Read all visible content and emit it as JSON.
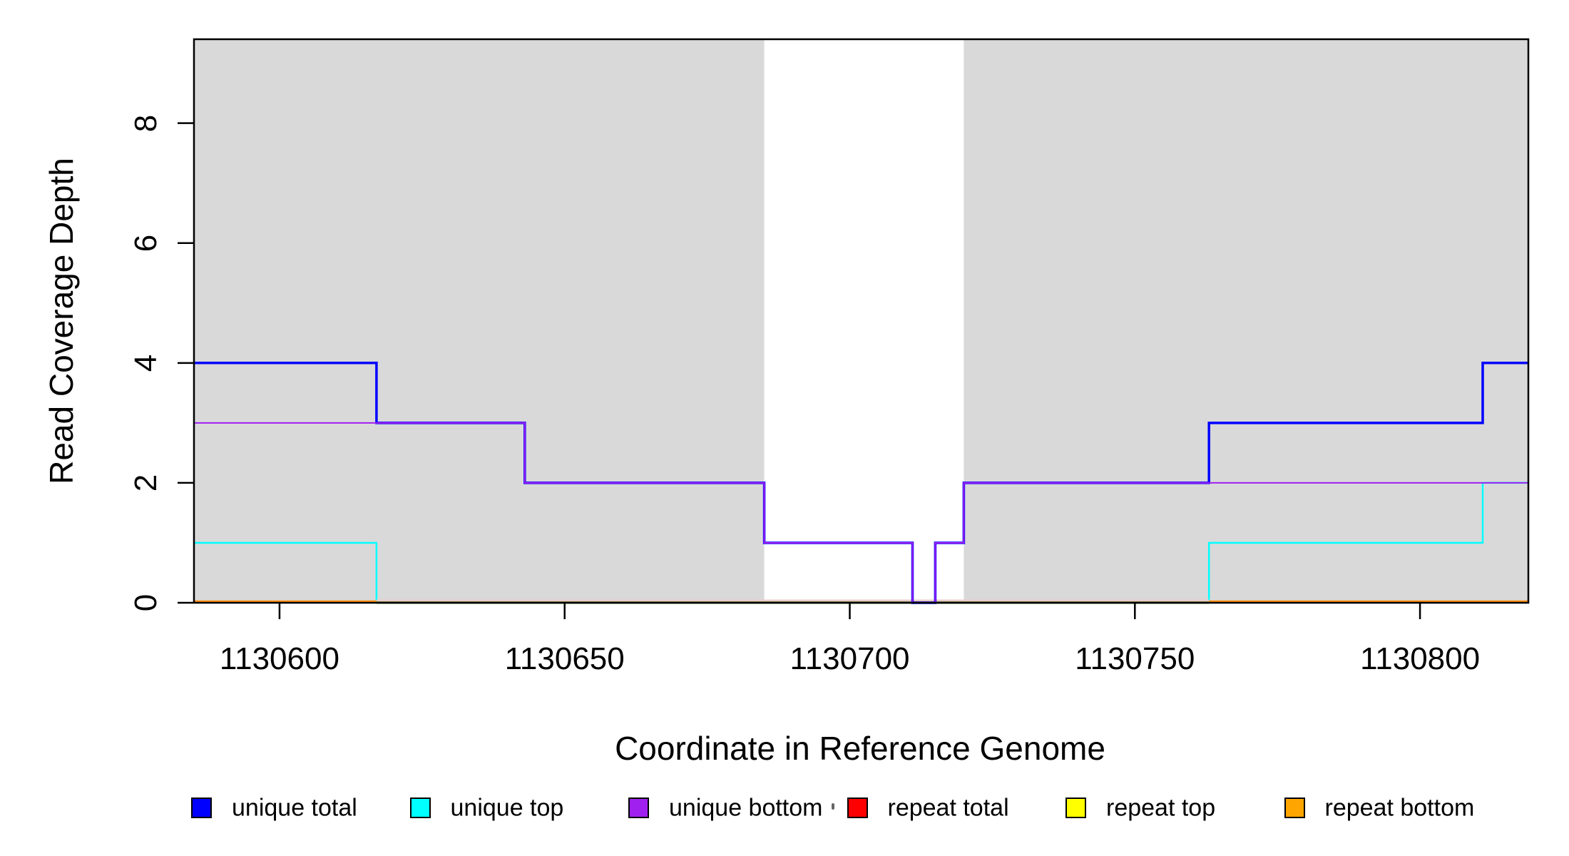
{
  "figure": {
    "background": "#ffffff",
    "plot_background_shaded": "#d9d9d9",
    "x_axis_label": "Coordinate in Reference Genome",
    "y_axis_label": "Read Coverage Depth"
  },
  "chart_data": {
    "type": "line",
    "subtype": "step-coverage",
    "title": "",
    "xlabel": "Coordinate in Reference Genome",
    "ylabel": "Read Coverage Depth",
    "xlim": [
      1130585,
      1130819
    ],
    "ylim": [
      0,
      9.4
    ],
    "x_ticks": [
      1130600,
      1130650,
      1130700,
      1130750,
      1130800
    ],
    "y_ticks": [
      0,
      2,
      4,
      6,
      8
    ],
    "grid": false,
    "legend_position": "bottom",
    "shaded_regions": [
      {
        "from": 1130585,
        "to": 1130685,
        "color": "#d9d9d9"
      },
      {
        "from": 1130720,
        "to": 1130819,
        "color": "#d9d9d9"
      }
    ],
    "series": [
      {
        "name": "unique total",
        "color": "#0000ff",
        "lwd": 3.5,
        "steps": [
          [
            1130585,
            4
          ],
          [
            1130617,
            3
          ],
          [
            1130643,
            2
          ],
          [
            1130685,
            1
          ],
          [
            1130711,
            0
          ],
          [
            1130715,
            1
          ],
          [
            1130720,
            2
          ],
          [
            1130763,
            3
          ],
          [
            1130811,
            4
          ],
          [
            1130819,
            4
          ]
        ]
      },
      {
        "name": "unique top",
        "color": "#00ffff",
        "lwd": 2.5,
        "steps": [
          [
            1130585,
            1
          ],
          [
            1130617,
            0
          ],
          [
            1130763,
            1
          ],
          [
            1130811,
            2
          ],
          [
            1130819,
            2
          ]
        ]
      },
      {
        "name": "unique bottom",
        "color": "#a020f0",
        "lwd": 2,
        "steps": [
          [
            1130585,
            3
          ],
          [
            1130643,
            2
          ],
          [
            1130685,
            1
          ],
          [
            1130711,
            0
          ],
          [
            1130715,
            1
          ],
          [
            1130720,
            2
          ],
          [
            1130819,
            2
          ]
        ]
      },
      {
        "name": "repeat total",
        "color": "#ff0000",
        "lwd": 2,
        "steps": [
          [
            1130585,
            0
          ],
          [
            1130819,
            0
          ]
        ]
      },
      {
        "name": "repeat top",
        "color": "#ffff00",
        "lwd": 2,
        "steps": [
          [
            1130585,
            0
          ],
          [
            1130819,
            0
          ]
        ]
      },
      {
        "name": "repeat bottom",
        "color": "#ffa500",
        "lwd": 3,
        "steps": [
          [
            1130585,
            0
          ],
          [
            1130819,
            0
          ]
        ]
      }
    ],
    "render_colors": {
      "baseline_orange": "#ff8c00",
      "baseline_blend_pink": "#eccaca",
      "baseline_blend_olive": "#6f8b3f",
      "box": "#000000"
    }
  },
  "legend": {
    "items": [
      {
        "label": "unique total",
        "color": "#0000ff"
      },
      {
        "label": "unique top",
        "color": "#00ffff"
      },
      {
        "label": "unique bottom",
        "color": "#a020f0"
      },
      {
        "label": "repeat total",
        "color": "#ff0000"
      },
      {
        "label": "repeat top",
        "color": "#ffff00"
      },
      {
        "label": "repeat bottom",
        "color": "#ffa500"
      }
    ]
  }
}
